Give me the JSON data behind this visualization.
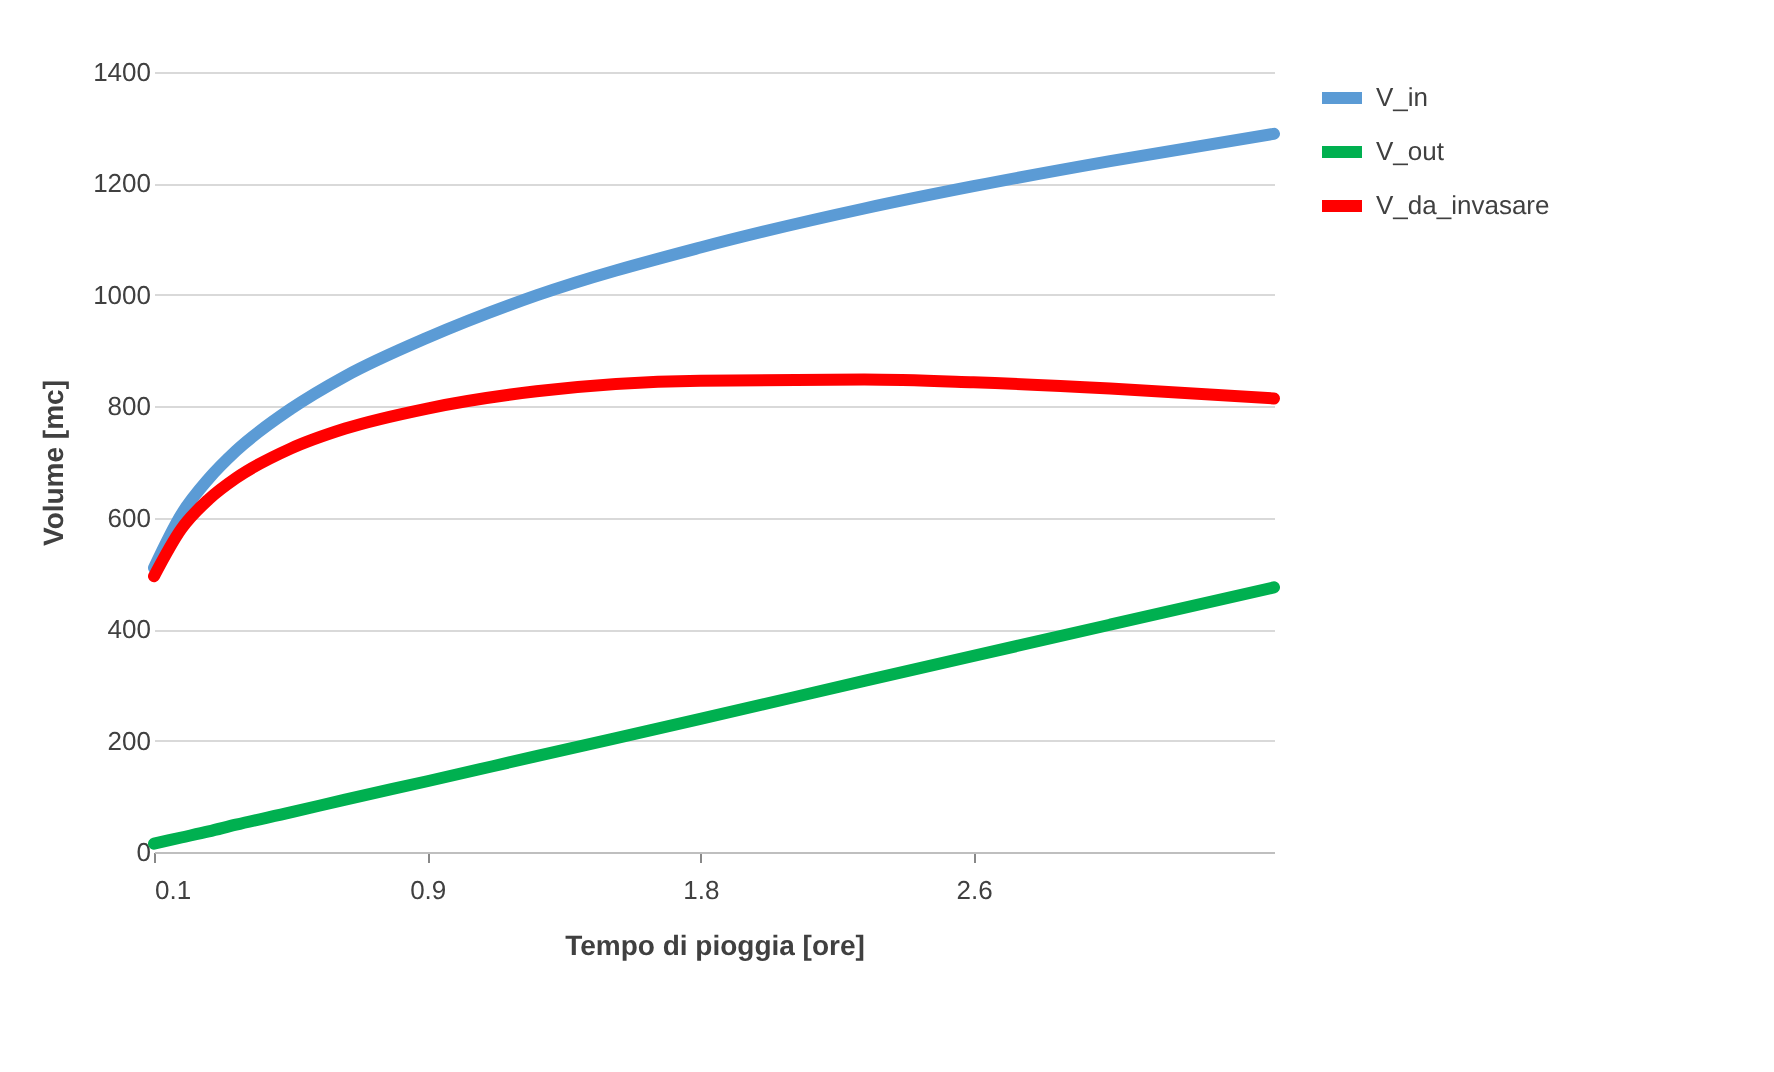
{
  "chart_data": {
    "type": "line",
    "xlabel": "Tempo di pioggia [ore]",
    "ylabel": "Volume [mc]",
    "x": [
      0.0833,
      0.1667,
      0.25,
      0.3333,
      0.5,
      0.6667,
      0.9167,
      1.25,
      1.75,
      2.25,
      2.5833,
      3,
      3.5
    ],
    "series": [
      {
        "name": "V_in",
        "color": "#5b9bd5",
        "values": [
          510,
          606,
          670,
          720,
          795,
          854,
          923,
          999,
          1085,
          1155,
          1195,
          1240,
          1289
        ]
      },
      {
        "name": "V_out",
        "color": "#00b050",
        "values": [
          15,
          26,
          37,
          49,
          71,
          94,
          127,
          172,
          239,
          307,
          352,
          408,
          475
        ]
      },
      {
        "name": "V_da_invasare",
        "color": "#ff0000",
        "values": [
          495,
          580,
          633,
          671,
          724,
          760,
          796,
          827,
          846,
          848,
          843,
          832,
          814
        ]
      }
    ],
    "xlim": [
      0.0833,
      3.5
    ],
    "xticks": [
      {
        "value": 0.0833,
        "label": "0.1"
      },
      {
        "value": 0.9167,
        "label": "0.9"
      },
      {
        "value": 1.75,
        "label": "1.8"
      },
      {
        "value": 2.5833,
        "label": "2.6"
      }
    ],
    "ylim": [
      0,
      1400
    ],
    "yticks": [
      0,
      200,
      400,
      600,
      800,
      1000,
      1200,
      1400
    ],
    "grid": "y",
    "legend": "right",
    "marker": "none",
    "line_style": "solid"
  }
}
